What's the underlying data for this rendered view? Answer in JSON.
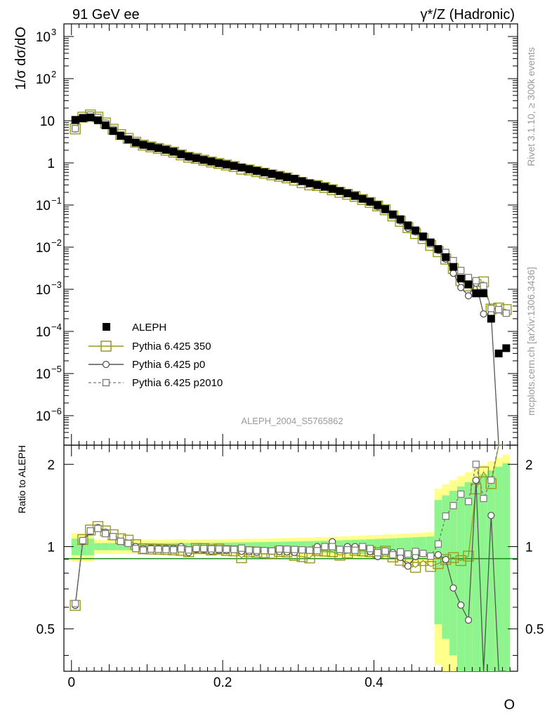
{
  "header": {
    "left": "91 GeV ee",
    "right": "γ*/Z (Hadronic)"
  },
  "side_labels": {
    "rivet": "Rivet 3.1.10, ≥ 300k events",
    "mcplots": "mcplots.cern.ch [arXiv:1306.3436]"
  },
  "watermark": "ALEPH_2004_S5765862",
  "axes": {
    "ylabel_main": "1/σ  dσ/dO",
    "ylabel_ratio": "Ratio to ALEPH",
    "xlabel": "O",
    "main_y_ticks": [
      {
        "base": "10",
        "exp": "3"
      },
      {
        "base": "10",
        "exp": "2"
      },
      {
        "base": "10",
        "exp": ""
      },
      {
        "base": "1",
        "exp": ""
      },
      {
        "base": "10",
        "exp": "−1"
      },
      {
        "base": "10",
        "exp": "−2"
      },
      {
        "base": "10",
        "exp": "−3"
      },
      {
        "base": "10",
        "exp": "−4"
      },
      {
        "base": "10",
        "exp": "−5"
      },
      {
        "base": "10",
        "exp": "−6"
      }
    ],
    "ratio_ticks_left": [
      "2",
      "1",
      "0.5"
    ],
    "ratio_ticks_right": [
      "2",
      "1",
      "0.5"
    ],
    "x_ticks": [
      "0",
      "0.2",
      "0.4"
    ]
  },
  "legend": {
    "placement": "bottom-left",
    "entries": [
      "ALEPH",
      "Pythia 6.425 350",
      "Pythia 6.425 p0",
      "Pythia 6.425 p2010"
    ]
  },
  "colors": {
    "data": "#000000",
    "p350": "#9a9a1a",
    "p0": "#555555",
    "p2010": "#777777",
    "band_yellow": "#ffff8c",
    "band_green": "#8ef58e"
  },
  "chart_data": {
    "type": "scatter",
    "xlabel": "O",
    "ylabel": "1/σ  dσ/dO",
    "x_range": [
      -0.01,
      0.59
    ],
    "y_range_log10": [
      -6.7,
      3.3
    ],
    "y_scale": "log",
    "ratio_range": [
      0.35,
      2.35
    ],
    "ratio_scale": "log",
    "ratio_ylabel": "Ratio to ALEPH",
    "x": [
      0.005,
      0.015,
      0.025,
      0.035,
      0.045,
      0.055,
      0.065,
      0.075,
      0.085,
      0.095,
      0.105,
      0.115,
      0.125,
      0.135,
      0.145,
      0.155,
      0.165,
      0.175,
      0.185,
      0.195,
      0.205,
      0.215,
      0.225,
      0.235,
      0.245,
      0.255,
      0.265,
      0.275,
      0.285,
      0.295,
      0.305,
      0.315,
      0.325,
      0.335,
      0.345,
      0.355,
      0.365,
      0.375,
      0.385,
      0.395,
      0.405,
      0.415,
      0.425,
      0.435,
      0.445,
      0.455,
      0.465,
      0.475,
      0.485,
      0.495,
      0.505,
      0.515,
      0.525,
      0.535,
      0.545,
      0.555,
      0.565,
      0.575
    ],
    "series": [
      {
        "name": "ALEPH",
        "values": [
          10.5,
          11.5,
          12.0,
          10.3,
          7.8,
          5.7,
          4.4,
          3.6,
          3.05,
          2.7,
          2.45,
          2.25,
          2.05,
          1.85,
          1.6,
          1.42,
          1.3,
          1.18,
          1.08,
          0.99,
          0.92,
          0.85,
          0.78,
          0.71,
          0.65,
          0.6,
          0.55,
          0.5,
          0.46,
          0.42,
          0.37,
          0.33,
          0.3,
          0.27,
          0.24,
          0.215,
          0.19,
          0.165,
          0.14,
          0.12,
          0.1,
          0.08,
          0.06,
          0.046,
          0.033,
          0.025,
          0.018,
          0.013,
          0.009,
          0.0058,
          0.0034,
          0.0018,
          0.0013,
          0.0008,
          0.0008,
          0.0002,
          3e-05,
          4e-05
        ]
      },
      {
        "name": "Pythia 6.425 350",
        "values": [
          6.4,
          12.2,
          13.8,
          12.2,
          8.9,
          6.3,
          4.7,
          3.8,
          3.1,
          2.65,
          2.4,
          2.2,
          2.0,
          1.8,
          1.55,
          1.36,
          1.28,
          1.16,
          1.05,
          0.97,
          0.89,
          0.82,
          0.71,
          0.68,
          0.62,
          0.57,
          0.52,
          0.48,
          0.44,
          0.39,
          0.34,
          0.3,
          0.29,
          0.26,
          0.23,
          0.2,
          0.18,
          0.16,
          0.135,
          0.115,
          0.095,
          0.077,
          0.055,
          0.041,
          0.029,
          0.021,
          0.016,
          0.011,
          0.0078,
          0.0052,
          0.0031,
          0.0016,
          0.0012,
          0.0013,
          0.0015,
          0.00034,
          0.00036,
          0.00033
        ]
      },
      {
        "name": "Pythia 6.425 p0",
        "values": [
          6.4,
          12.0,
          13.6,
          12.1,
          8.8,
          6.2,
          4.6,
          3.7,
          3.05,
          2.65,
          2.42,
          2.22,
          2.02,
          1.82,
          1.6,
          1.35,
          1.27,
          1.15,
          1.04,
          0.96,
          0.89,
          0.83,
          0.75,
          0.68,
          0.62,
          0.58,
          0.53,
          0.48,
          0.44,
          0.4,
          0.36,
          0.32,
          0.3,
          0.27,
          0.25,
          0.21,
          0.19,
          0.165,
          0.14,
          0.115,
          0.092,
          0.077,
          0.057,
          0.042,
          0.028,
          0.023,
          0.017,
          0.012,
          0.0084,
          0.0052,
          0.0024,
          0.0011,
          0.0007,
          0.0014,
          0.00026,
          0.00026,
          0.0,
          0.0
        ]
      },
      {
        "name": "Pythia 6.425 p2010",
        "values": [
          6.5,
          12.1,
          13.7,
          12.0,
          8.7,
          6.2,
          4.6,
          3.7,
          3.0,
          2.62,
          2.4,
          2.2,
          2.0,
          1.8,
          1.57,
          1.38,
          1.28,
          1.16,
          1.06,
          0.97,
          0.9,
          0.83,
          0.77,
          0.69,
          0.63,
          0.58,
          0.53,
          0.49,
          0.45,
          0.41,
          0.36,
          0.32,
          0.29,
          0.27,
          0.24,
          0.21,
          0.185,
          0.16,
          0.14,
          0.118,
          0.095,
          0.077,
          0.056,
          0.044,
          0.031,
          0.024,
          0.017,
          0.012,
          0.0092,
          0.0075,
          0.0048,
          0.0028,
          0.0019,
          0.0016,
          0.0012,
          0.00035,
          0.00033,
          0.00027
        ]
      }
    ]
  }
}
